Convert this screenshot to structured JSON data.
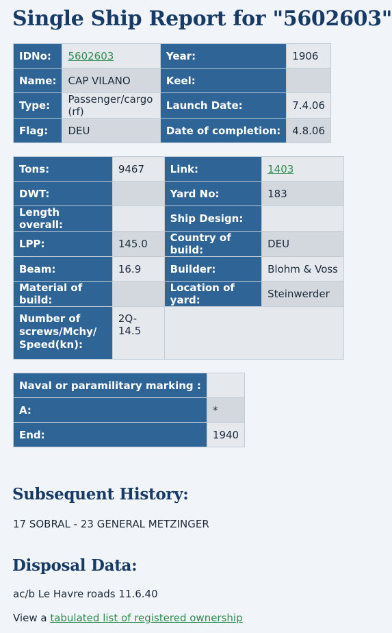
{
  "title": "Single Ship Report for \"5602603\"",
  "table1": {
    "idno_label": "IDNo:",
    "idno_value": "5602603",
    "year_label": "Year:",
    "year_value": "1906",
    "name_label": "Name:",
    "name_value": "CAP VILANO",
    "keel_label": "Keel:",
    "keel_value": "",
    "type_label": "Type:",
    "type_value": "Passenger/cargo (rf)",
    "launch_label": "Launch Date:",
    "launch_value": "7.4.06",
    "flag_label": "Flag:",
    "flag_value": "DEU",
    "completion_label": "Date of completion:",
    "completion_value": "4.8.06"
  },
  "table2": {
    "tons_label": "Tons:",
    "tons_value": "9467",
    "link_label": "Link:",
    "link_value": "1403",
    "dwt_label": "DWT:",
    "dwt_value": "",
    "yard_label": "Yard No:",
    "yard_value": "183",
    "length_label": "Length overall:",
    "length_value": "",
    "design_label": "Ship Design:",
    "design_value": "",
    "lpp_label": "LPP:",
    "lpp_value": "145.0",
    "country_label": "Country of build:",
    "country_value": "DEU",
    "beam_label": "Beam:",
    "beam_value": "16.9",
    "builder_label": "Builder:",
    "builder_value": "Blohm & Voss",
    "material_label": "Material of build:",
    "material_value": "",
    "location_label": "Location of yard:",
    "location_value": "Steinwerder",
    "screws_label": "Number of screws/Mchy/ Speed(kn):",
    "screws_value": "2Q-14.5"
  },
  "table3": {
    "naval_label": "Naval or paramilitary marking :",
    "naval_value": "",
    "a_label": "A:",
    "a_value": "*",
    "end_label": "End:",
    "end_value": "1940"
  },
  "history": {
    "heading": "Subsequent History:",
    "text": "17 SOBRAL - 23 GENERAL METZINGER"
  },
  "disposal": {
    "heading": "Disposal Data:",
    "text": "ac/b Le Havre roads 11.6.40"
  },
  "ownership": {
    "prefix": "View a ",
    "link": "tabulated list of registered ownership"
  }
}
